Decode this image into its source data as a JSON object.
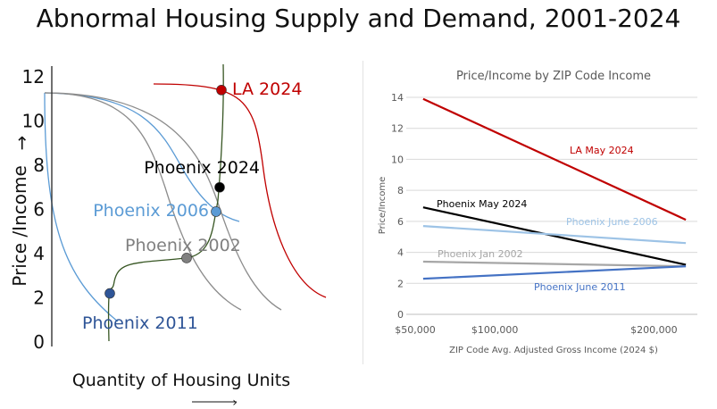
{
  "title": "Abnormal Housing Supply and Demand, 2001-2024",
  "chart_data": [
    {
      "type": "line",
      "subtype": "conceptual supply-demand curves",
      "title": "",
      "ylabel": "Price /Income",
      "ylabel_arrow": "→",
      "xlabel": "Quantity of Housing Units",
      "xlabel_arrow": "→",
      "ylim": [
        0,
        13
      ],
      "yticks": [
        0,
        2,
        4,
        6,
        8,
        10,
        12
      ],
      "ytick_labels": [
        "0",
        "2",
        "4",
        "6",
        "8",
        "10",
        "12"
      ],
      "colors": {
        "la": "#c00000",
        "phoenix_2024": "#000000",
        "phoenix_2006": "#5b9bd5",
        "phoenix_2002": "#808080",
        "phoenix_2011": "#2f5597",
        "supply": "#375623",
        "gray_curve": "#8c8c8c"
      },
      "points": [
        {
          "label": "LA 2024",
          "y": 11.4,
          "color": "#c00000"
        },
        {
          "label": "Phoenix 2024",
          "y": 7.0,
          "color": "#000000"
        },
        {
          "label": "Phoenix 2006",
          "y": 5.9,
          "color": "#5b9bd5"
        },
        {
          "label": "Phoenix 2002",
          "y": 3.8,
          "color": "#808080"
        },
        {
          "label": "Phoenix 2011",
          "y": 2.2,
          "color": "#2f5597"
        }
      ]
    },
    {
      "type": "line",
      "title": "Price/Income by ZIP Code Income",
      "xlabel": "ZIP Code Avg. Adjusted Gross Income (2024 $)",
      "ylabel": "Price/Income",
      "xlim": [
        50000,
        225000
      ],
      "ylim": [
        0,
        14
      ],
      "yticks": [
        0,
        2,
        4,
        6,
        8,
        10,
        12,
        14
      ],
      "ytick_labels": [
        "0",
        "2",
        "4",
        "6",
        "8",
        "10",
        "12",
        "14"
      ],
      "xticks": [
        50000,
        100000,
        200000
      ],
      "xtick_labels": [
        "$50,000",
        "$100,000",
        "$200,000"
      ],
      "series": [
        {
          "name": "LA May 2024",
          "x": [
            55000,
            220000
          ],
          "values": [
            13.9,
            6.1
          ],
          "color": "#c00000"
        },
        {
          "name": "Phoenix May 2024",
          "x": [
            55000,
            220000
          ],
          "values": [
            6.9,
            3.2
          ],
          "color": "#000000"
        },
        {
          "name": "Phoenix June 2006",
          "x": [
            55000,
            220000
          ],
          "values": [
            5.7,
            4.6
          ],
          "color": "#9dc3e6"
        },
        {
          "name": "Phoenix Jan 2002",
          "x": [
            55000,
            220000
          ],
          "values": [
            3.4,
            3.1
          ],
          "color": "#a6a6a6"
        },
        {
          "name": "Phoenix June 2011",
          "x": [
            55000,
            220000
          ],
          "values": [
            2.3,
            3.1
          ],
          "color": "#4472c4"
        }
      ]
    }
  ]
}
